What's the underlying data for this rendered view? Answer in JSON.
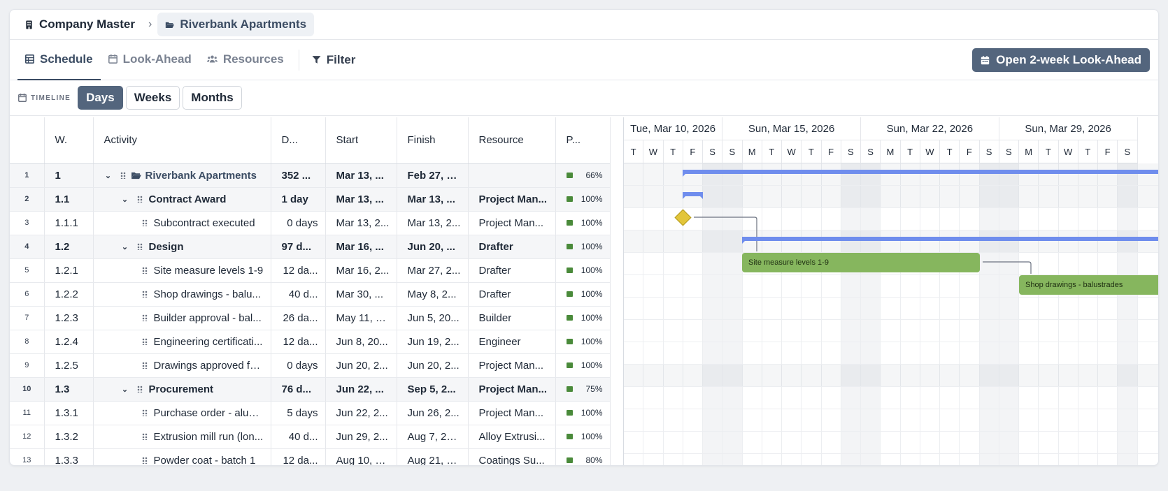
{
  "breadcrumb": [
    {
      "label": "Company Master"
    },
    {
      "label": "Riverbank Apartments"
    }
  ],
  "tabs": [
    {
      "label": "Schedule",
      "active": true
    },
    {
      "label": "Look-Ahead",
      "active": false
    },
    {
      "label": "Resources",
      "active": false
    }
  ],
  "filter_label": "Filter",
  "open_lookahead_label": "Open 2-week Look-Ahead",
  "timeline": {
    "label": "TIMELINE",
    "options": [
      "Days",
      "Weeks",
      "Months"
    ],
    "selected": "Days"
  },
  "columns": {
    "wbs": "W.",
    "activity": "Activity",
    "duration": "D...",
    "start": "Start",
    "finish": "Finish",
    "resource": "Resource",
    "progress": "P..."
  },
  "rows": [
    {
      "n": "1",
      "wbs": "1",
      "activity": "Riverbank Apartments",
      "dur": "352 ...",
      "start": "Mar 13, ...",
      "finish": "Feb 27, 2...",
      "resource": "",
      "pct": "66%",
      "level": 0,
      "group": true,
      "project": true
    },
    {
      "n": "2",
      "wbs": "1.1",
      "activity": "Contract Award",
      "dur": "1 day",
      "start": "Mar 13, ...",
      "finish": "Mar 13, ...",
      "resource": "Project Man...",
      "pct": "100%",
      "level": 1,
      "group": true
    },
    {
      "n": "3",
      "wbs": "1.1.1",
      "activity": "Subcontract executed",
      "dur": "0 days",
      "start": "Mar 13, 2...",
      "finish": "Mar 13, 2...",
      "resource": "Project Man...",
      "pct": "100%",
      "level": 2,
      "group": false
    },
    {
      "n": "4",
      "wbs": "1.2",
      "activity": "Design",
      "dur": "97 d...",
      "start": "Mar 16, ...",
      "finish": "Jun 20, ...",
      "resource": "Drafter",
      "pct": "100%",
      "level": 1,
      "group": true
    },
    {
      "n": "5",
      "wbs": "1.2.1",
      "activity": "Site measure levels 1-9",
      "dur": "12 da...",
      "start": "Mar 16, 2...",
      "finish": "Mar 27, 2...",
      "resource": "Drafter",
      "pct": "100%",
      "level": 2,
      "group": false
    },
    {
      "n": "6",
      "wbs": "1.2.2",
      "activity": "Shop drawings - balu...",
      "dur": "40 d...",
      "start": "Mar 30, ...",
      "finish": "May 8, 2...",
      "resource": "Drafter",
      "pct": "100%",
      "level": 2,
      "group": false
    },
    {
      "n": "7",
      "wbs": "1.2.3",
      "activity": "Builder approval - bal...",
      "dur": "26 da...",
      "start": "May 11, 2...",
      "finish": "Jun 5, 20...",
      "resource": "Builder",
      "pct": "100%",
      "level": 2,
      "group": false
    },
    {
      "n": "8",
      "wbs": "1.2.4",
      "activity": "Engineering certificati...",
      "dur": "12 da...",
      "start": "Jun 8, 20...",
      "finish": "Jun 19, 2...",
      "resource": "Engineer",
      "pct": "100%",
      "level": 2,
      "group": false
    },
    {
      "n": "9",
      "wbs": "1.2.5",
      "activity": "Drawings approved fo...",
      "dur": "0 days",
      "start": "Jun 20, 2...",
      "finish": "Jun 20, 2...",
      "resource": "Project Man...",
      "pct": "100%",
      "level": 2,
      "group": false
    },
    {
      "n": "10",
      "wbs": "1.3",
      "activity": "Procurement",
      "dur": "76 d...",
      "start": "Jun 22, ...",
      "finish": "Sep 5, 2...",
      "resource": "Project Man...",
      "pct": "75%",
      "level": 1,
      "group": true
    },
    {
      "n": "11",
      "wbs": "1.3.1",
      "activity": "Purchase order - alum...",
      "dur": "5 days",
      "start": "Jun 22, 2...",
      "finish": "Jun 26, 2...",
      "resource": "Project Man...",
      "pct": "100%",
      "level": 2,
      "group": false
    },
    {
      "n": "12",
      "wbs": "1.3.2",
      "activity": "Extrusion mill run (lon...",
      "dur": "40 d...",
      "start": "Jun 29, 2...",
      "finish": "Aug 7, 20...",
      "resource": "Alloy Extrusi...",
      "pct": "100%",
      "level": 2,
      "group": false
    },
    {
      "n": "13",
      "wbs": "1.3.3",
      "activity": "Powder coat - batch 1",
      "dur": "12 da...",
      "start": "Aug 10, 2...",
      "finish": "Aug 21, 2...",
      "resource": "Coatings Su...",
      "pct": "80%",
      "level": 2,
      "group": false
    }
  ],
  "gantt": {
    "weeks": [
      "Tue, Mar 10, 2026",
      "Sun, Mar 15, 2026",
      "Sun, Mar 22, 2026",
      "Sun, Mar 29, 2026"
    ],
    "days": [
      "T",
      "W",
      "T",
      "F",
      "S",
      "S",
      "M",
      "T",
      "W",
      "T",
      "F",
      "S",
      "S",
      "M",
      "T",
      "W",
      "T",
      "F",
      "S",
      "S",
      "M",
      "T",
      "W",
      "T",
      "F",
      "S"
    ],
    "task_labels": {
      "site_measure": "Site measure levels 1-9",
      "shop_drawings": "Shop drawings - balustrades"
    },
    "colors": {
      "summary": "#6f8ded",
      "task": "#86b65e",
      "milestone": "#e2c53a"
    }
  }
}
